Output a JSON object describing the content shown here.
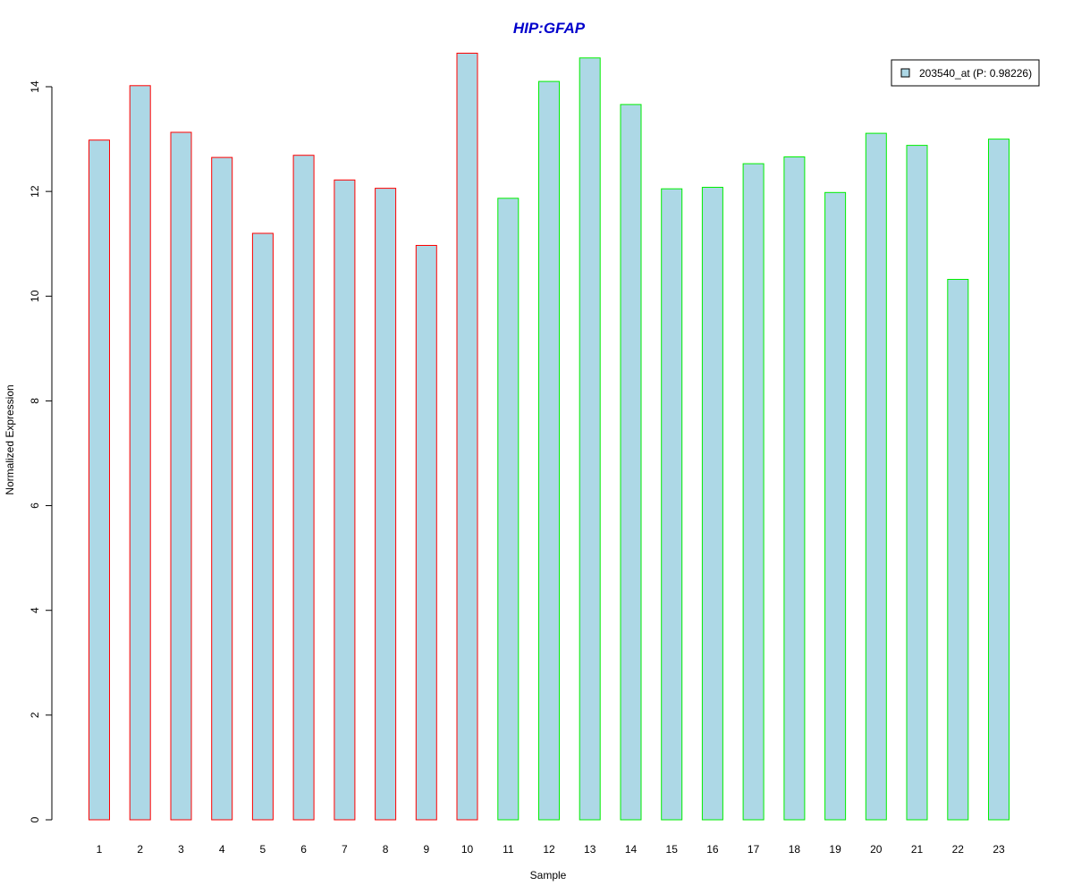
{
  "chart_data": {
    "type": "bar",
    "title": "HIP:GFAP",
    "xlabel": "Sample",
    "ylabel": "Normalized Expression",
    "categories": [
      "1",
      "2",
      "3",
      "4",
      "5",
      "6",
      "7",
      "8",
      "9",
      "10",
      "11",
      "12",
      "13",
      "14",
      "15",
      "16",
      "17",
      "18",
      "19",
      "20",
      "21",
      "22",
      "23"
    ],
    "series": [
      {
        "name": "203540_at (P: 0.98226)",
        "values": [
          12.98,
          14.02,
          13.13,
          12.65,
          11.2,
          12.69,
          12.22,
          12.06,
          10.97,
          14.64,
          11.87,
          14.1,
          14.55,
          13.66,
          12.05,
          12.08,
          12.53,
          12.66,
          11.98,
          13.11,
          12.88,
          10.32,
          13.0
        ]
      }
    ],
    "group_border_colors": [
      "#ff0000",
      "#ff0000",
      "#ff0000",
      "#ff0000",
      "#ff0000",
      "#ff0000",
      "#ff0000",
      "#ff0000",
      "#ff0000",
      "#ff0000",
      "#00ee00",
      "#00ee00",
      "#00ee00",
      "#00ee00",
      "#00ee00",
      "#00ee00",
      "#00ee00",
      "#00ee00",
      "#00ee00",
      "#00ee00",
      "#00ee00",
      "#00ee00",
      "#00ee00"
    ],
    "bar_fill": "#add8e6",
    "ylim": [
      0,
      14
    ],
    "yticks": [
      0,
      2,
      4,
      6,
      8,
      10,
      12,
      14
    ],
    "grid": false,
    "legend_position": "top-right"
  }
}
